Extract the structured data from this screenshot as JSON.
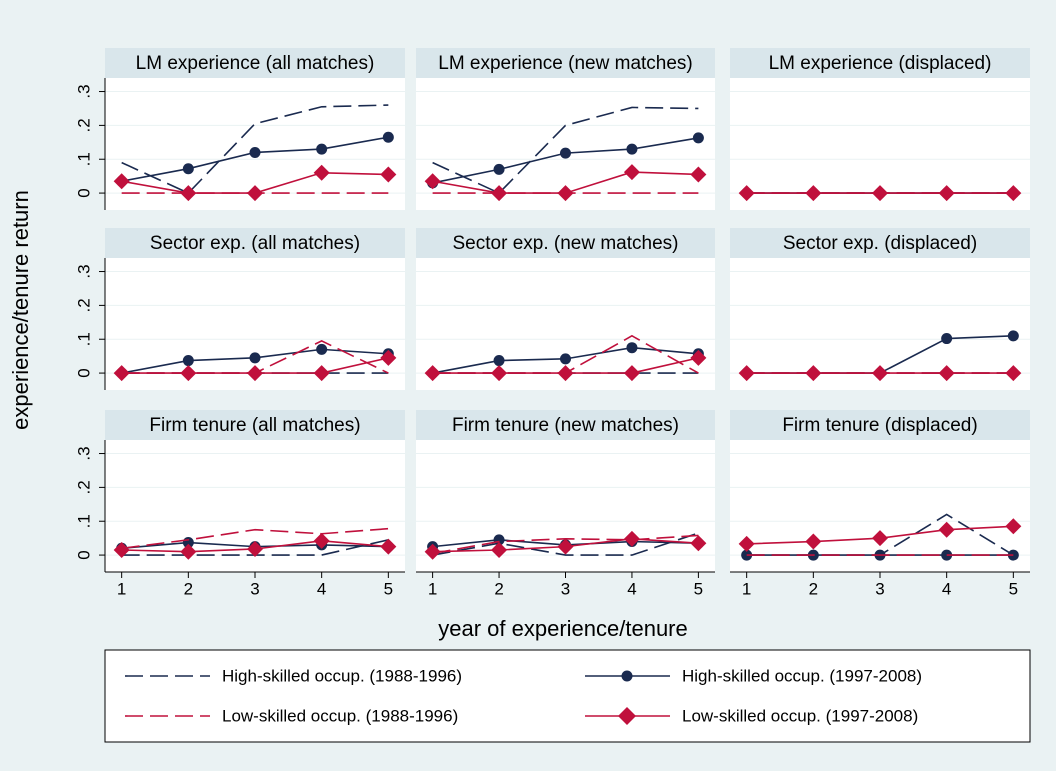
{
  "ylabel": "experience/tenure return",
  "xlabel": "year of experience/tenure",
  "chart_data": [
    {
      "type": "line",
      "title": "LM experience (all matches)",
      "x": [
        1,
        2,
        3,
        4,
        5
      ],
      "xlim": [
        0.75,
        5.25
      ],
      "ylim": [
        -0.05,
        0.34
      ],
      "yticks": [
        0,
        {
          "value": 0.1,
          "label": ".1"
        },
        {
          "value": 0.2,
          "label": ".2"
        },
        {
          "value": 0.3,
          "label": ".3"
        }
      ],
      "series": [
        {
          "name": "High-skilled occup. (1988-1996)",
          "color": "#1a2a4f",
          "line_style": "dashed",
          "marker": "none",
          "values": [
            0.09,
            0,
            0.205,
            0.255,
            0.26
          ]
        },
        {
          "name": "High-skilled occup. (1997-2008)",
          "color": "#1a2a4f",
          "line_style": "solid",
          "marker": "circle",
          "values": [
            0.035,
            0.072,
            0.12,
            0.13,
            0.165
          ]
        },
        {
          "name": "Low-skilled occup. (1988-1996)",
          "color": "#c0103c",
          "line_style": "dashed",
          "marker": "none",
          "values": [
            0,
            0,
            0,
            0,
            0
          ]
        },
        {
          "name": "Low-skilled occup. (1997-2008)",
          "color": "#c0103c",
          "line_style": "solid",
          "marker": "diamond",
          "values": [
            0.035,
            0,
            0,
            0.06,
            0.055
          ]
        }
      ]
    },
    {
      "type": "line",
      "title": "LM experience (new matches)",
      "x": [
        1,
        2,
        3,
        4,
        5
      ],
      "xlim": [
        0.75,
        5.25
      ],
      "ylim": [
        -0.05,
        0.34
      ],
      "yticks": [
        0,
        {
          "value": 0.1,
          "label": ".1"
        },
        {
          "value": 0.2,
          "label": ".2"
        },
        {
          "value": 0.3,
          "label": ".3"
        }
      ],
      "series": [
        {
          "name": "High-skilled occup. (1988-1996)",
          "color": "#1a2a4f",
          "line_style": "dashed",
          "marker": "none",
          "values": [
            0.09,
            0,
            0.2,
            0.253,
            0.25
          ]
        },
        {
          "name": "High-skilled occup. (1997-2008)",
          "color": "#1a2a4f",
          "line_style": "solid",
          "marker": "circle",
          "values": [
            0.03,
            0.07,
            0.118,
            0.13,
            0.163
          ]
        },
        {
          "name": "Low-skilled occup. (1988-1996)",
          "color": "#c0103c",
          "line_style": "dashed",
          "marker": "none",
          "values": [
            0,
            0,
            0,
            0,
            0
          ]
        },
        {
          "name": "Low-skilled occup. (1997-2008)",
          "color": "#c0103c",
          "line_style": "solid",
          "marker": "diamond",
          "values": [
            0.035,
            0,
            0,
            0.062,
            0.055
          ]
        }
      ]
    },
    {
      "type": "line",
      "title": "LM experience (displaced)",
      "x": [
        1,
        2,
        3,
        4,
        5
      ],
      "xlim": [
        0.75,
        5.25
      ],
      "ylim": [
        -0.05,
        0.34
      ],
      "yticks": [
        0,
        {
          "value": 0.1,
          "label": ".1"
        },
        {
          "value": 0.2,
          "label": ".2"
        },
        {
          "value": 0.3,
          "label": ".3"
        }
      ],
      "series": [
        {
          "name": "High-skilled occup. (1988-1996)",
          "color": "#1a2a4f",
          "line_style": "dashed",
          "marker": "none",
          "values": [
            0,
            0,
            0,
            0,
            0
          ]
        },
        {
          "name": "High-skilled occup. (1997-2008)",
          "color": "#1a2a4f",
          "line_style": "solid",
          "marker": "circle",
          "values": [
            0,
            0,
            0,
            0,
            0
          ]
        },
        {
          "name": "Low-skilled occup. (1988-1996)",
          "color": "#c0103c",
          "line_style": "dashed",
          "marker": "none",
          "values": [
            0,
            0,
            0,
            0,
            0
          ]
        },
        {
          "name": "Low-skilled occup. (1997-2008)",
          "color": "#c0103c",
          "line_style": "solid",
          "marker": "diamond",
          "values": [
            0,
            0,
            0,
            0,
            0
          ]
        }
      ]
    },
    {
      "type": "line",
      "title": "Sector exp. (all matches)",
      "x": [
        1,
        2,
        3,
        4,
        5
      ],
      "xlim": [
        0.75,
        5.25
      ],
      "ylim": [
        -0.05,
        0.34
      ],
      "yticks": [
        0,
        {
          "value": 0.1,
          "label": ".1"
        },
        {
          "value": 0.2,
          "label": ".2"
        },
        {
          "value": 0.3,
          "label": ".3"
        }
      ],
      "series": [
        {
          "name": "High-skilled occup. (1988-1996)",
          "color": "#1a2a4f",
          "line_style": "dashed",
          "marker": "none",
          "values": [
            0,
            0,
            0,
            0,
            0
          ]
        },
        {
          "name": "High-skilled occup. (1997-2008)",
          "color": "#1a2a4f",
          "line_style": "solid",
          "marker": "circle",
          "values": [
            0,
            0.037,
            0.045,
            0.07,
            0.057
          ]
        },
        {
          "name": "Low-skilled occup. (1988-1996)",
          "color": "#c0103c",
          "line_style": "dashed",
          "marker": "none",
          "values": [
            0,
            0,
            0,
            0.095,
            0
          ]
        },
        {
          "name": "Low-skilled occup. (1997-2008)",
          "color": "#c0103c",
          "line_style": "solid",
          "marker": "diamond",
          "values": [
            0,
            0,
            0,
            0,
            0.045
          ]
        }
      ]
    },
    {
      "type": "line",
      "title": "Sector exp. (new matches)",
      "x": [
        1,
        2,
        3,
        4,
        5
      ],
      "xlim": [
        0.75,
        5.25
      ],
      "ylim": [
        -0.05,
        0.34
      ],
      "yticks": [
        0,
        {
          "value": 0.1,
          "label": ".1"
        },
        {
          "value": 0.2,
          "label": ".2"
        },
        {
          "value": 0.3,
          "label": ".3"
        }
      ],
      "series": [
        {
          "name": "High-skilled occup. (1988-1996)",
          "color": "#1a2a4f",
          "line_style": "dashed",
          "marker": "none",
          "values": [
            0,
            0,
            0,
            0,
            0
          ]
        },
        {
          "name": "High-skilled occup. (1997-2008)",
          "color": "#1a2a4f",
          "line_style": "solid",
          "marker": "circle",
          "values": [
            0,
            0.037,
            0.042,
            0.075,
            0.057
          ]
        },
        {
          "name": "Low-skilled occup. (1988-1996)",
          "color": "#c0103c",
          "line_style": "dashed",
          "marker": "none",
          "values": [
            0,
            0,
            0,
            0.11,
            0
          ]
        },
        {
          "name": "Low-skilled occup. (1997-2008)",
          "color": "#c0103c",
          "line_style": "solid",
          "marker": "diamond",
          "values": [
            0,
            0,
            0,
            0,
            0.045
          ]
        }
      ]
    },
    {
      "type": "line",
      "title": "Sector exp. (displaced)",
      "x": [
        1,
        2,
        3,
        4,
        5
      ],
      "xlim": [
        0.75,
        5.25
      ],
      "ylim": [
        -0.05,
        0.34
      ],
      "yticks": [
        0,
        {
          "value": 0.1,
          "label": ".1"
        },
        {
          "value": 0.2,
          "label": ".2"
        },
        {
          "value": 0.3,
          "label": ".3"
        }
      ],
      "series": [
        {
          "name": "High-skilled occup. (1988-1996)",
          "color": "#1a2a4f",
          "line_style": "dashed",
          "marker": "none",
          "values": [
            0,
            0,
            0,
            0,
            0
          ]
        },
        {
          "name": "High-skilled occup. (1997-2008)",
          "color": "#1a2a4f",
          "line_style": "solid",
          "marker": "circle",
          "values": [
            0,
            0,
            0,
            0.102,
            0.11
          ]
        },
        {
          "name": "Low-skilled occup. (1988-1996)",
          "color": "#c0103c",
          "line_style": "dashed",
          "marker": "none",
          "values": [
            0,
            0,
            0,
            0,
            0
          ]
        },
        {
          "name": "Low-skilled occup. (1997-2008)",
          "color": "#c0103c",
          "line_style": "solid",
          "marker": "diamond",
          "values": [
            0,
            0,
            0,
            0,
            0
          ]
        }
      ]
    },
    {
      "type": "line",
      "title": "Firm tenure (all matches)",
      "x": [
        1,
        2,
        3,
        4,
        5
      ],
      "xlim": [
        0.75,
        5.25
      ],
      "xticks": [
        1,
        2,
        3,
        4,
        5
      ],
      "ylim": [
        -0.05,
        0.34
      ],
      "yticks": [
        0,
        {
          "value": 0.1,
          "label": ".1"
        },
        {
          "value": 0.2,
          "label": ".2"
        },
        {
          "value": 0.3,
          "label": ".3"
        }
      ],
      "series": [
        {
          "name": "High-skilled occup. (1988-1996)",
          "color": "#1a2a4f",
          "line_style": "dashed",
          "marker": "none",
          "values": [
            0,
            0,
            0,
            0,
            0.045
          ]
        },
        {
          "name": "High-skilled occup. (1997-2008)",
          "color": "#1a2a4f",
          "line_style": "solid",
          "marker": "circle",
          "values": [
            0.02,
            0.037,
            0.025,
            0.03,
            0.025
          ]
        },
        {
          "name": "Low-skilled occup. (1988-1996)",
          "color": "#c0103c",
          "line_style": "dashed",
          "marker": "none",
          "values": [
            0.02,
            0.045,
            0.075,
            0.063,
            0.078
          ]
        },
        {
          "name": "Low-skilled occup. (1997-2008)",
          "color": "#c0103c",
          "line_style": "solid",
          "marker": "diamond",
          "values": [
            0.015,
            0.01,
            0.018,
            0.042,
            0.025
          ]
        }
      ]
    },
    {
      "type": "line",
      "title": "Firm tenure (new matches)",
      "x": [
        1,
        2,
        3,
        4,
        5
      ],
      "xlim": [
        0.75,
        5.25
      ],
      "xticks": [
        1,
        2,
        3,
        4,
        5
      ],
      "ylim": [
        -0.05,
        0.34
      ],
      "yticks": [
        0,
        {
          "value": 0.1,
          "label": ".1"
        },
        {
          "value": 0.2,
          "label": ".2"
        },
        {
          "value": 0.3,
          "label": ".3"
        }
      ],
      "series": [
        {
          "name": "High-skilled occup. (1988-1996)",
          "color": "#1a2a4f",
          "line_style": "dashed",
          "marker": "none",
          "values": [
            0,
            0.035,
            0,
            0,
            0.065
          ]
        },
        {
          "name": "High-skilled occup. (1997-2008)",
          "color": "#1a2a4f",
          "line_style": "solid",
          "marker": "circle",
          "values": [
            0.025,
            0.045,
            0.03,
            0.04,
            0.035
          ]
        },
        {
          "name": "Low-skilled occup. (1988-1996)",
          "color": "#c0103c",
          "line_style": "dashed",
          "marker": "none",
          "values": [
            0.005,
            0.04,
            0.048,
            0.045,
            0.058
          ]
        },
        {
          "name": "Low-skilled occup. (1997-2008)",
          "color": "#c0103c",
          "line_style": "solid",
          "marker": "diamond",
          "values": [
            0.01,
            0.015,
            0.025,
            0.048,
            0.035
          ]
        }
      ]
    },
    {
      "type": "line",
      "title": "Firm tenure (displaced)",
      "x": [
        1,
        2,
        3,
        4,
        5
      ],
      "xlim": [
        0.75,
        5.25
      ],
      "xticks": [
        1,
        2,
        3,
        4,
        5
      ],
      "ylim": [
        -0.05,
        0.34
      ],
      "yticks": [
        0,
        {
          "value": 0.1,
          "label": ".1"
        },
        {
          "value": 0.2,
          "label": ".2"
        },
        {
          "value": 0.3,
          "label": ".3"
        }
      ],
      "series": [
        {
          "name": "High-skilled occup. (1988-1996)",
          "color": "#1a2a4f",
          "line_style": "dashed",
          "marker": "none",
          "values": [
            0,
            0,
            0,
            0.12,
            0
          ]
        },
        {
          "name": "High-skilled occup. (1997-2008)",
          "color": "#1a2a4f",
          "line_style": "solid",
          "marker": "circle",
          "values": [
            0,
            0,
            0,
            0,
            0
          ]
        },
        {
          "name": "Low-skilled occup. (1988-1996)",
          "color": "#c0103c",
          "line_style": "dashed",
          "marker": "none",
          "values": [
            0,
            0,
            0,
            0,
            0
          ]
        },
        {
          "name": "Low-skilled occup. (1997-2008)",
          "color": "#c0103c",
          "line_style": "solid",
          "marker": "diamond",
          "values": [
            0.033,
            0.04,
            0.05,
            0.075,
            0.085
          ]
        }
      ]
    }
  ]
}
